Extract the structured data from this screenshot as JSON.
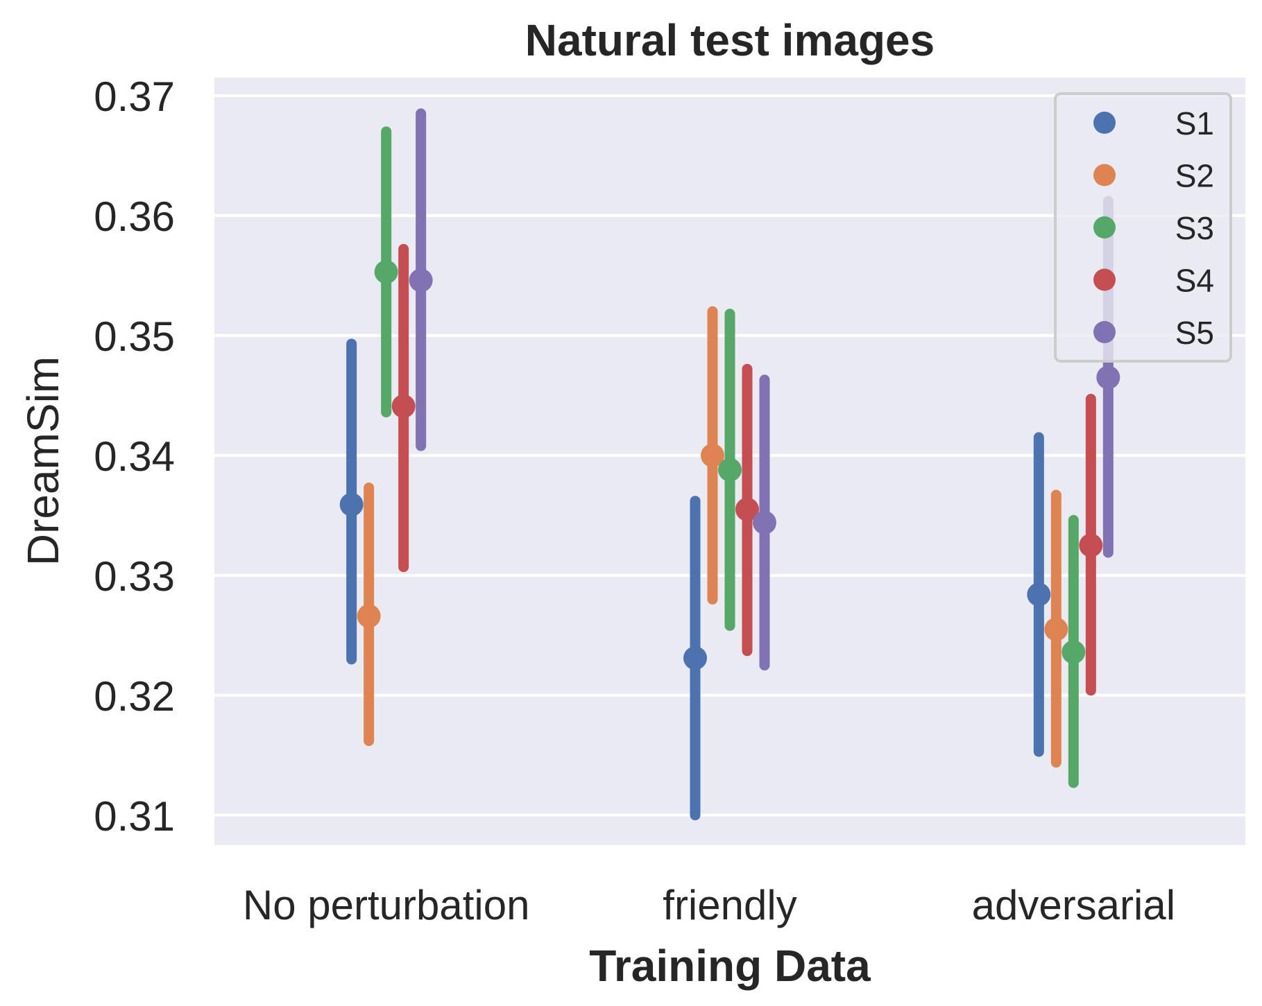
{
  "chart_data": {
    "type": "scatter",
    "style": "point plot with vertical error bars, series dodged within each category",
    "title": "Natural test images",
    "xlabel": "Training Data",
    "ylabel": "DreamSim",
    "categories": [
      "No perturbation",
      "friendly",
      "adversarial"
    ],
    "ylim": [
      0.3075,
      0.3715
    ],
    "yticks": [
      0.31,
      0.32,
      0.33,
      0.34,
      0.35,
      0.36,
      0.37
    ],
    "ytick_labels": [
      "0.31",
      "0.32",
      "0.33",
      "0.34",
      "0.35",
      "0.36",
      "0.37"
    ],
    "grid": "horizontal",
    "legend_position": "upper right",
    "series": [
      {
        "name": "S1",
        "color": "#4c72b0",
        "values": [
          0.3359,
          0.3231,
          0.3284
        ],
        "ci_low": [
          0.323,
          0.31,
          0.3153
        ],
        "ci_high": [
          0.3493,
          0.3362,
          0.3415
        ]
      },
      {
        "name": "S2",
        "color": "#dd8452",
        "values": [
          0.3266,
          0.34,
          0.3255
        ],
        "ci_low": [
          0.3162,
          0.328,
          0.3144
        ],
        "ci_high": [
          0.3373,
          0.352,
          0.3367
        ]
      },
      {
        "name": "S3",
        "color": "#55a868",
        "values": [
          0.3553,
          0.3388,
          0.3236
        ],
        "ci_low": [
          0.3436,
          0.3258,
          0.3127
        ],
        "ci_high": [
          0.367,
          0.3518,
          0.3346
        ]
      },
      {
        "name": "S4",
        "color": "#c44e52",
        "values": [
          0.3441,
          0.3355,
          0.3325
        ],
        "ci_low": [
          0.3307,
          0.3237,
          0.3204
        ],
        "ci_high": [
          0.3572,
          0.3472,
          0.3447
        ]
      },
      {
        "name": "S5",
        "color": "#8172b3",
        "values": [
          0.3546,
          0.3344,
          0.3465
        ],
        "ci_low": [
          0.3408,
          0.3225,
          0.3319
        ],
        "ci_high": [
          0.3685,
          0.3463,
          0.3612
        ]
      }
    ]
  }
}
